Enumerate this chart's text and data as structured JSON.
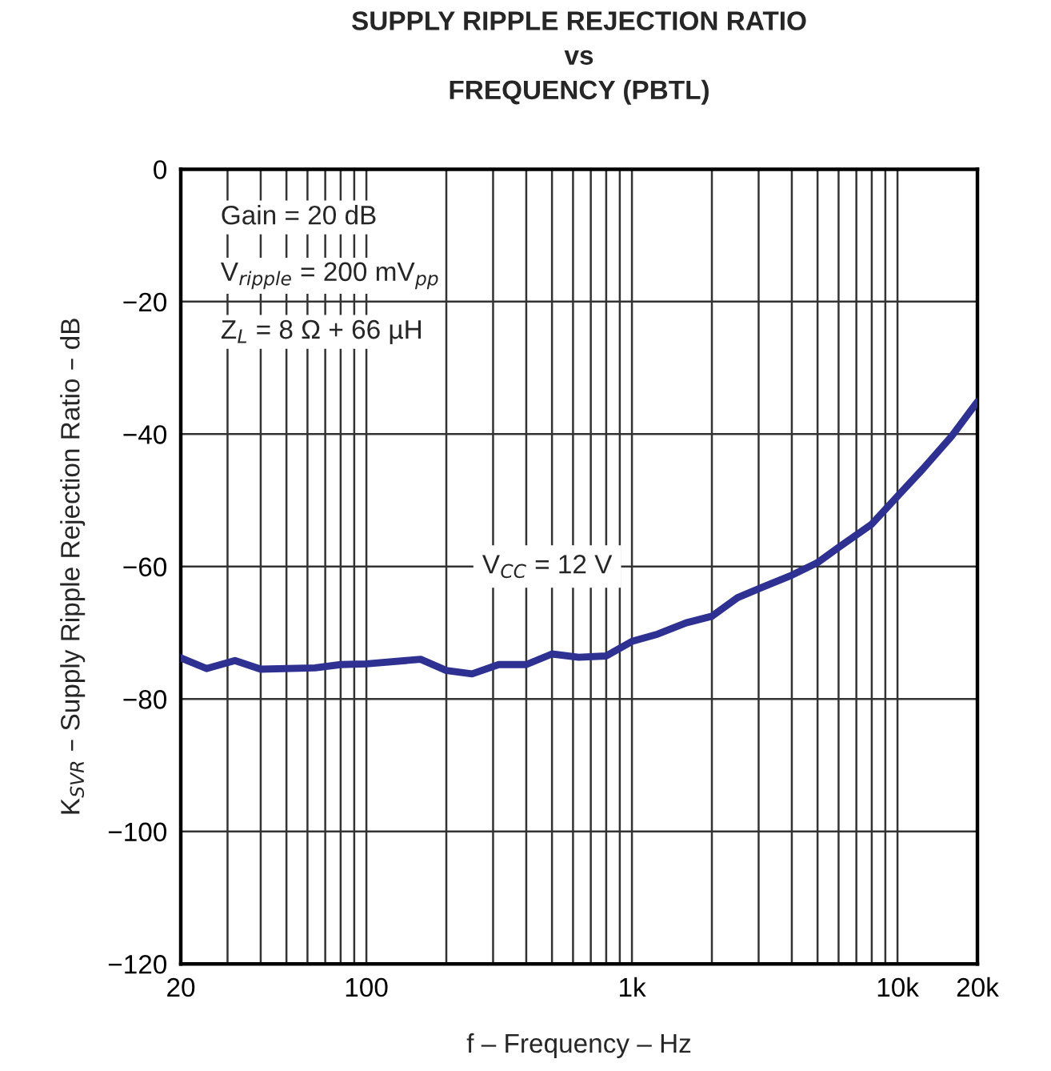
{
  "chart_data": {
    "type": "line",
    "title": "SUPPLY RIPPLE REJECTION RATIO\nvs\nFREQUENCY (PBTL)",
    "xlabel": "f – Frequency – Hz",
    "ylabel": "K$_{SVR}$ – Supply Ripple Rejection Ratio – dB",
    "annotations": [
      "Gain = 20 dB",
      "V$_{ripple}$ = 200 mV$_{pp}$",
      "Z$_{L}$ = 8 Ω + 66 µH",
      "V$_{CC}$ = 12 V"
    ],
    "log": "x",
    "grid": true,
    "line_style": "solid",
    "marker": "none",
    "xlim": [
      20,
      20000
    ],
    "ylim": [
      -120,
      0
    ],
    "xticks": [
      20,
      {
        "value": 30,
        "label": null
      },
      {
        "value": 40,
        "label": null
      },
      {
        "value": 50,
        "label": null
      },
      {
        "value": 60,
        "label": null
      },
      {
        "value": 70,
        "label": null
      },
      {
        "value": 80,
        "label": null
      },
      {
        "value": 90,
        "label": null
      },
      100,
      {
        "value": 200,
        "label": null
      },
      {
        "value": 300,
        "label": null
      },
      {
        "value": 400,
        "label": null
      },
      {
        "value": 500,
        "label": null
      },
      {
        "value": 600,
        "label": null
      },
      {
        "value": 700,
        "label": null
      },
      {
        "value": 800,
        "label": null
      },
      {
        "value": 900,
        "label": null
      },
      {
        "value": 1000,
        "label": "1k"
      },
      {
        "value": 2000,
        "label": null
      },
      {
        "value": 3000,
        "label": null
      },
      {
        "value": 4000,
        "label": null
      },
      {
        "value": 5000,
        "label": null
      },
      {
        "value": 6000,
        "label": null
      },
      {
        "value": 7000,
        "label": null
      },
      {
        "value": 8000,
        "label": null
      },
      {
        "value": 9000,
        "label": null
      },
      {
        "value": 10000,
        "label": "10k"
      },
      {
        "value": 20000,
        "label": "20k"
      }
    ],
    "yticks": [
      0,
      {
        "value": -20,
        "label": "−20"
      },
      {
        "value": -40,
        "label": "−40"
      },
      {
        "value": -60,
        "label": "−60"
      },
      {
        "value": -80,
        "label": "−80"
      },
      {
        "value": -100,
        "label": "−100"
      },
      {
        "value": -120,
        "label": "−120"
      }
    ],
    "series": [
      {
        "color": "#2e3192",
        "x": [
          20,
          25,
          32,
          40,
          64,
          80,
          100,
          160,
          200,
          250,
          315,
          400,
          500,
          630,
          800,
          1000,
          1250,
          1600,
          2000,
          2500,
          3150,
          4000,
          5000,
          6000,
          8000,
          10000,
          12500,
          16000,
          20000
        ],
        "values": [
          -73.8,
          -75.4,
          -74.2,
          -75.5,
          -75.3,
          -74.8,
          -74.7,
          -74.0,
          -75.7,
          -76.2,
          -74.8,
          -74.8,
          -73.2,
          -73.7,
          -73.5,
          -71.3,
          -70.2,
          -68.5,
          -67.5,
          -64.7,
          -63.0,
          -61.3,
          -59.4,
          -57.1,
          -53.6,
          -49.4,
          -45.2,
          -40.3,
          -35.1
        ]
      }
    ]
  }
}
